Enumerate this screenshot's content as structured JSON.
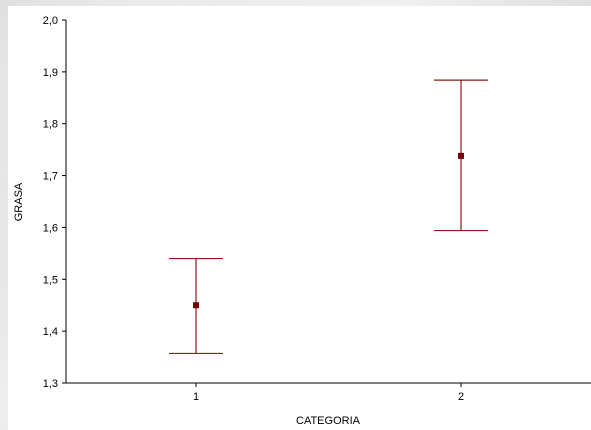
{
  "chart_data": {
    "type": "errorbar",
    "title": "",
    "xlabel": "CATEGORIA",
    "ylabel": "GRASA",
    "categories": [
      "1",
      "2"
    ],
    "means": [
      1.45,
      1.738
    ],
    "lower": [
      1.357,
      1.594
    ],
    "upper": [
      1.54,
      1.884
    ],
    "ylim": [
      1.3,
      2.0
    ],
    "yticks": [
      "1,3",
      "1,4",
      "1,5",
      "1,6",
      "1,7",
      "1,8",
      "1,9",
      "2,0"
    ],
    "grid": false,
    "color": "#8b1a1a",
    "marker_color": "#7a0000"
  }
}
